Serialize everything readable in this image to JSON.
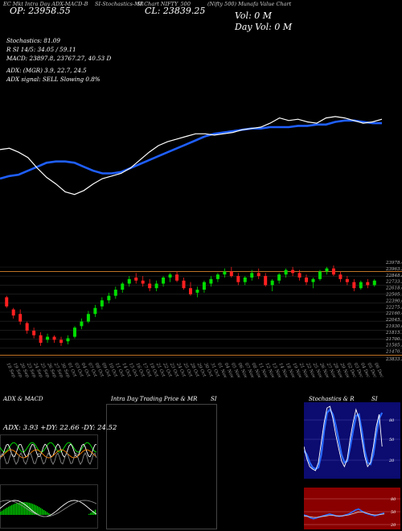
{
  "header": {
    "left_label": "EC Mkt  Intra Day  ADX-MACD-B",
    "mid_label": "SI-Stochastics-MR",
    "sym_label": "SI Chart  NIFTY_500",
    "name_label": "(Nifty 500) Munafa Value Chart",
    "op_label": "OP: 23958.55",
    "cl_label": "CL: 23839.25",
    "vol_label": "Vol: 0    M",
    "dayvol_label": "Day Vol: 0    M"
  },
  "info_lines": [
    "Stochastics: 81.09",
    "R                SI 14/5: 34.05 / 59.11",
    "MACD: 23897.8,  23767.27,  40.53 D",
    "ADX:                (MGR) 3.9,  22.7,  24.5",
    "ADX  signal: SELL  Slowing 0.8%"
  ],
  "colors": {
    "background": "#000000",
    "ma_line": "#1f5fff",
    "price_line": "#ffffff",
    "up_candle": "#00dd00",
    "down_candle": "#ff2020",
    "level_line": "#ff9933"
  },
  "chart_data": [
    {
      "type": "line",
      "series": [
        {
          "values": [
            23960,
            23970,
            23940,
            23900,
            23820,
            23750,
            23700,
            23640,
            23620,
            23650,
            23700,
            23740,
            23760,
            23780,
            23820,
            23880,
            23940,
            23990,
            24020,
            24040,
            24060,
            24080,
            24080,
            24070,
            24080,
            24090,
            24110,
            24120,
            24130,
            24160,
            24200,
            24180,
            24190,
            24170,
            24160,
            24200,
            24210,
            24200,
            24180,
            24160,
            24170,
            24190
          ]
        },
        {
          "values": [
            23740,
            23760,
            23770,
            23800,
            23830,
            23860,
            23870,
            23870,
            23860,
            23830,
            23800,
            23780,
            23780,
            23790,
            23820,
            23850,
            23880,
            23910,
            23940,
            23970,
            24000,
            24030,
            24060,
            24080,
            24090,
            24100,
            24110,
            24120,
            24120,
            24130,
            24130,
            24130,
            24140,
            24140,
            24150,
            24150,
            24170,
            24180,
            24180,
            24170,
            24160,
            24160
          ]
        }
      ]
    },
    {
      "type": "bar",
      "x": [
        "18 Sep",
        "19 Sep",
        "20 Sep",
        "23 Sep",
        "24 Sep",
        "25 Sep",
        "26 Sep",
        "27 Sep",
        "30 Sep",
        "01 Oct",
        "03 Oct",
        "04 Oct",
        "07 Oct",
        "08 Oct",
        "09 Oct",
        "10 Oct",
        "11 Oct",
        "14 Oct",
        "15 Oct",
        "16 Oct",
        "17 Oct",
        "18 Oct",
        "21 Oct",
        "22 Oct",
        "23 Oct",
        "24 Oct",
        "25 Oct",
        "28 Oct",
        "29 Oct",
        "30 Oct",
        "31 Oct",
        "01 Nov",
        "04 Nov",
        "05 Nov",
        "06 Nov",
        "07 Nov",
        "08 Nov",
        "11 Nov",
        "12 Nov",
        "13 Nov",
        "14 Nov",
        "18 Nov",
        "19 Nov",
        "21 Nov",
        "22 Nov",
        "25 Nov",
        "26 Nov",
        "27 Nov",
        "28 Nov",
        "29 Nov",
        "02 Dec",
        "03 Dec",
        "04 Dec",
        "05 Dec",
        "06 Dec"
      ],
      "candles": [
        [
          24040,
          24050,
          23970,
          23980
        ],
        [
          23960,
          23970,
          23900,
          23920
        ],
        [
          23930,
          23960,
          23860,
          23880
        ],
        [
          23870,
          23880,
          23800,
          23820
        ],
        [
          23820,
          23840,
          23770,
          23790
        ],
        [
          23790,
          23810,
          23720,
          23740
        ],
        [
          23760,
          23800,
          23740,
          23780
        ],
        [
          23780,
          23790,
          23740,
          23760
        ],
        [
          23760,
          23780,
          23720,
          23740
        ],
        [
          23750,
          23790,
          23730,
          23770
        ],
        [
          23780,
          23850,
          23770,
          23840
        ],
        [
          23850,
          23900,
          23830,
          23880
        ],
        [
          23880,
          23950,
          23870,
          23930
        ],
        [
          23930,
          23990,
          23910,
          23970
        ],
        [
          23980,
          24040,
          23960,
          24020
        ],
        [
          24020,
          24070,
          24000,
          24050
        ],
        [
          24050,
          24110,
          24030,
          24090
        ],
        [
          24090,
          24140,
          24070,
          24130
        ],
        [
          24130,
          24180,
          24110,
          24160
        ],
        [
          24170,
          24200,
          24130,
          24150
        ],
        [
          24150,
          24180,
          24110,
          24130
        ],
        [
          24130,
          24160,
          24080,
          24100
        ],
        [
          24100,
          24150,
          24080,
          24130
        ],
        [
          24130,
          24180,
          24110,
          24170
        ],
        [
          24170,
          24200,
          24140,
          24190
        ],
        [
          24190,
          24210,
          24140,
          24150
        ],
        [
          24150,
          24170,
          24090,
          24100
        ],
        [
          24100,
          24140,
          24050,
          24060
        ],
        [
          24070,
          24110,
          24040,
          24090
        ],
        [
          24090,
          24150,
          24070,
          24140
        ],
        [
          24130,
          24180,
          24110,
          24160
        ],
        [
          24160,
          24200,
          24140,
          24190
        ],
        [
          24190,
          24230,
          24170,
          24210
        ],
        [
          24210,
          24240,
          24170,
          24180
        ],
        [
          24180,
          24200,
          24120,
          24140
        ],
        [
          24140,
          24180,
          24120,
          24170
        ],
        [
          24170,
          24220,
          24150,
          24200
        ],
        [
          24200,
          24230,
          24160,
          24180
        ],
        [
          24180,
          24200,
          24110,
          24120
        ],
        [
          24120,
          24160,
          24080,
          24150
        ],
        [
          24150,
          24200,
          24130,
          24190
        ],
        [
          24190,
          24230,
          24170,
          24220
        ],
        [
          24220,
          24240,
          24180,
          24200
        ],
        [
          24200,
          24220,
          24150,
          24170
        ],
        [
          24170,
          24190,
          24120,
          24140
        ],
        [
          24140,
          24170,
          24100,
          24160
        ],
        [
          24160,
          24220,
          24150,
          24210
        ],
        [
          24210,
          24240,
          24190,
          24230
        ],
        [
          24230,
          24250,
          24180,
          24190
        ],
        [
          24190,
          24210,
          24140,
          24160
        ],
        [
          24160,
          24180,
          24120,
          24140
        ],
        [
          24140,
          24160,
          24080,
          24100
        ],
        [
          24100,
          24150,
          24090,
          24140
        ],
        [
          24140,
          24160,
          24100,
          24120
        ],
        [
          24120,
          24160,
          24110,
          24150
        ]
      ],
      "ticks": [
        "23978.45",
        "23963.35",
        "22848.85",
        "22733.25",
        "22618.05",
        "22505.15",
        "22390.05",
        "22275.55",
        "22160.45",
        "22045.15",
        "21930.05",
        "21815.15",
        "21700.15",
        "21585.55",
        "21470.15",
        "23833.25"
      ]
    }
  ],
  "panels": {
    "adx": {
      "title": "ADX  & MACD",
      "values_text": "ADX: 3.93  +DY: 22.66  -DY: 24.52"
    },
    "intra": {
      "title": "Intra  Day Trading Price  & MR",
      "title_right": "SI"
    },
    "stoch": {
      "title": "Stochastics & R",
      "title_right": "SI",
      "ticks": [
        "80",
        "50",
        "20"
      ],
      "rsi_ticks": [
        "80",
        "50",
        "20"
      ]
    }
  }
}
